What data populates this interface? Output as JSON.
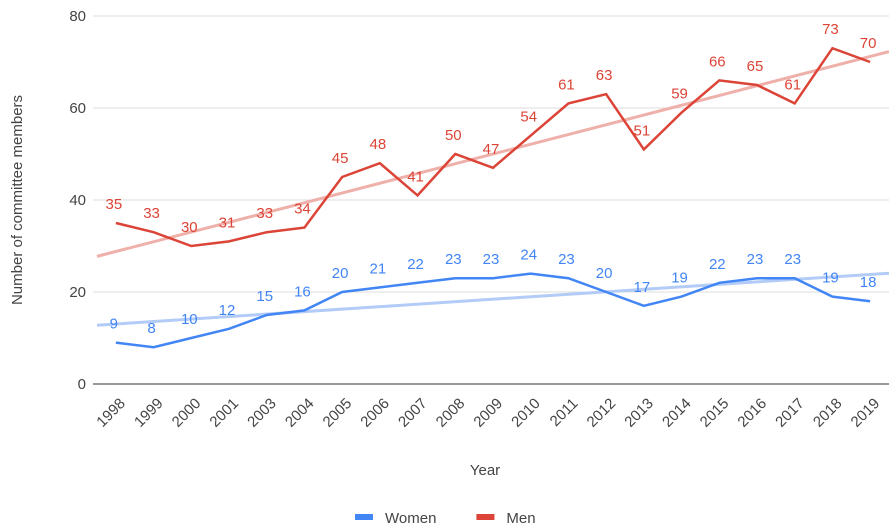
{
  "chart_data": {
    "type": "line",
    "x_label": "Year",
    "y_label": "Number of committee members",
    "categories": [
      "1998",
      "1999",
      "2000",
      "2001",
      "2003",
      "2004",
      "2005",
      "2006",
      "2007",
      "2008",
      "2009",
      "2010",
      "2011",
      "2012",
      "2013",
      "2014",
      "2015",
      "2016",
      "2017",
      "2018",
      "2019"
    ],
    "series": [
      {
        "name": "Women",
        "color": "#4285f4",
        "trend_color": "#b3cbf7",
        "values": [
          9,
          8,
          10,
          12,
          15,
          16,
          20,
          21,
          22,
          23,
          23,
          24,
          23,
          20,
          17,
          19,
          22,
          23,
          23,
          19,
          18
        ]
      },
      {
        "name": "Men",
        "color": "#db4437",
        "trend_color": "#efb0aa",
        "values": [
          35,
          33,
          30,
          31,
          33,
          34,
          45,
          48,
          41,
          50,
          47,
          54,
          61,
          63,
          51,
          59,
          66,
          65,
          61,
          73,
          70
        ]
      }
    ],
    "ylim": [
      0,
      80
    ],
    "yticks": [
      0,
      20,
      40,
      60,
      80
    ],
    "grid": true,
    "trendline": true,
    "legend": "bottom"
  }
}
